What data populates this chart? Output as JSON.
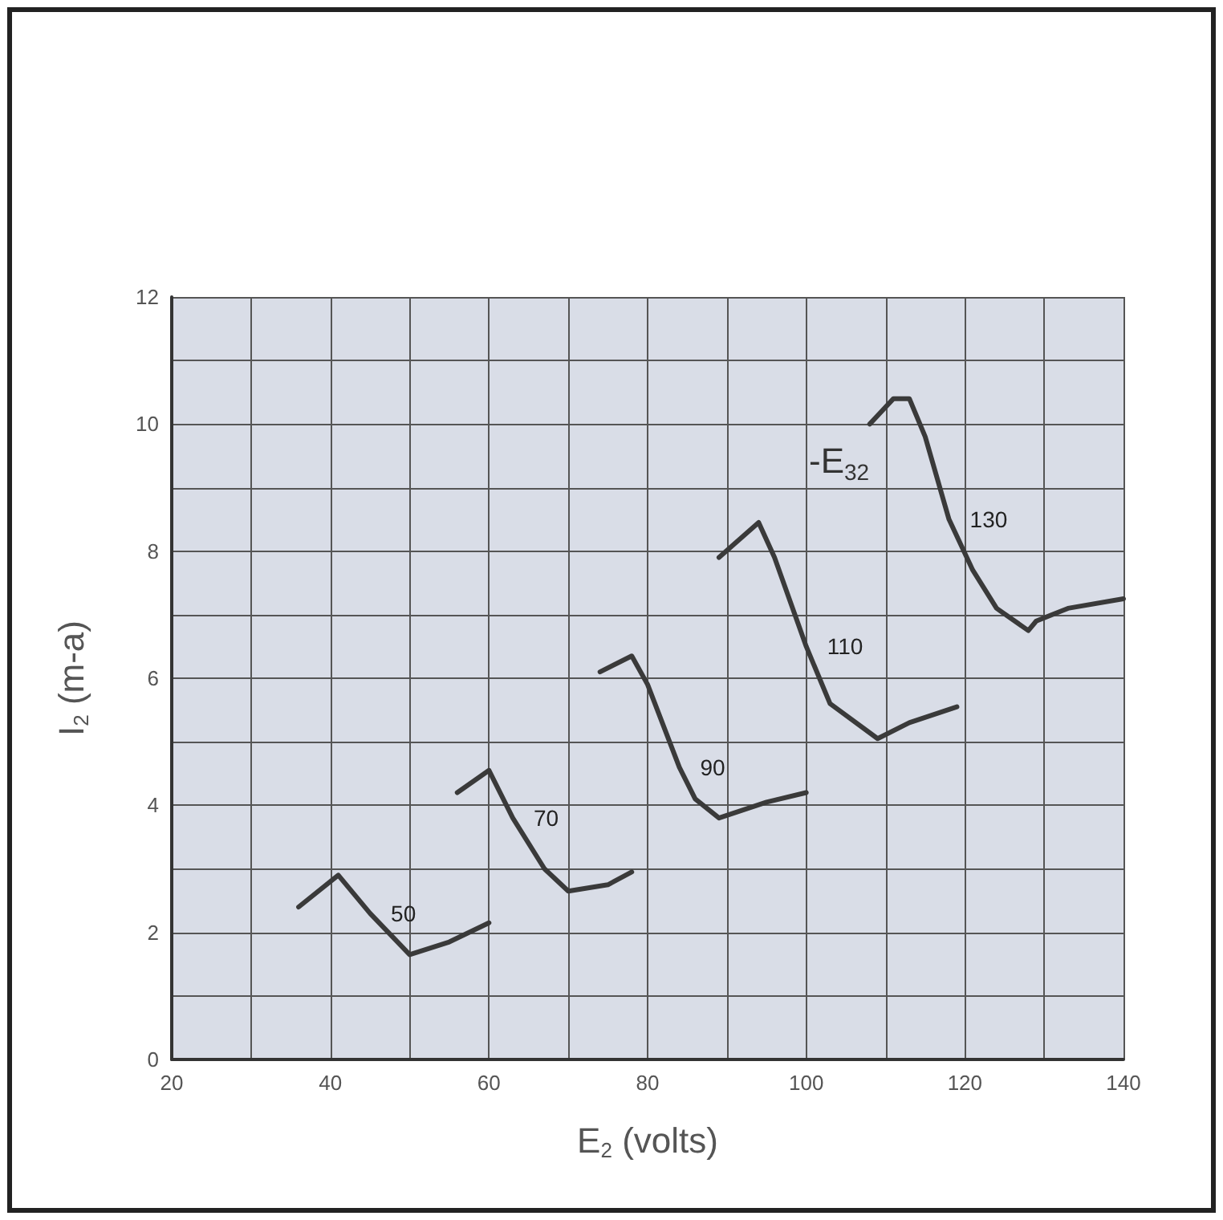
{
  "chart_data": {
    "type": "line",
    "xlabel": "E$_{2}$ (volts)",
    "ylabel": "I$_{2}$ (m-a)",
    "annotations": [
      "-E$_{32}$"
    ],
    "xlim": [
      20,
      140
    ],
    "ylim": [
      0,
      12
    ],
    "xticks": [
      20,
      {
        "value": 30,
        "label": null
      },
      40,
      {
        "value": 50,
        "label": null
      },
      60,
      {
        "value": 70,
        "label": null
      },
      80,
      {
        "value": 90,
        "label": null
      },
      100,
      {
        "value": 110,
        "label": null
      },
      120,
      {
        "value": 130,
        "label": null
      },
      140
    ],
    "yticks": [
      0,
      {
        "value": 1,
        "label": null
      },
      2,
      {
        "value": 3,
        "label": null
      },
      4,
      {
        "value": 5,
        "label": null
      },
      6,
      {
        "value": 7,
        "label": null
      },
      8,
      {
        "value": 9,
        "label": null
      },
      10,
      {
        "value": 11,
        "label": null
      },
      12
    ],
    "grid": true,
    "legend": false,
    "marker": "none",
    "line_style": "solid",
    "series": [
      {
        "name": "50",
        "color": "#3a3a3a",
        "x": [
          36,
          41,
          45,
          50,
          55,
          60
        ],
        "values": [
          2.4,
          2.9,
          2.3,
          1.65,
          1.85,
          2.15
        ]
      },
      {
        "name": "70",
        "color": "#3a3a3a",
        "x": [
          56,
          60,
          63,
          67,
          70,
          75,
          78
        ],
        "values": [
          4.2,
          4.55,
          3.8,
          3.0,
          2.65,
          2.75,
          2.95
        ]
      },
      {
        "name": "90",
        "color": "#3a3a3a",
        "x": [
          74,
          78,
          80,
          84,
          86,
          89,
          95,
          100
        ],
        "values": [
          6.1,
          6.35,
          5.9,
          4.6,
          4.1,
          3.8,
          4.05,
          4.2
        ]
      },
      {
        "name": "110",
        "color": "#3a3a3a",
        "x": [
          89,
          94,
          96,
          100,
          103,
          109,
          113,
          119
        ],
        "values": [
          7.9,
          8.45,
          7.9,
          6.5,
          5.6,
          5.05,
          5.3,
          5.55
        ]
      },
      {
        "name": "130",
        "color": "#3a3a3a",
        "x": [
          108,
          111,
          113,
          115,
          118,
          121,
          124,
          128,
          129,
          133,
          140
        ],
        "values": [
          10.0,
          10.4,
          10.4,
          9.8,
          8.5,
          7.7,
          7.1,
          6.75,
          6.9,
          7.1,
          7.25
        ]
      }
    ]
  }
}
